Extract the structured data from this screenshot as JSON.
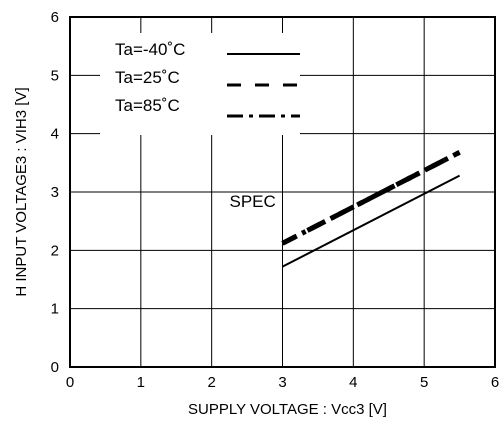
{
  "chart_data": {
    "type": "line",
    "xlabel": "SUPPLY VOLTAGE : Vcc3 [V]",
    "ylabel": "H INPUT VOLTAGE3 : VIH3 [V]",
    "xlim": [
      0,
      6
    ],
    "ylim": [
      0,
      6
    ],
    "x_ticks": [
      "0",
      "1",
      "2",
      "3",
      "4",
      "5",
      "6"
    ],
    "y_ticks": [
      "0",
      "1",
      "2",
      "3",
      "4",
      "5",
      "6"
    ],
    "grid": true,
    "legend_position": "top-left",
    "series": [
      {
        "name": "Ta=-40˚C",
        "style": "solid",
        "color": "#000000",
        "x": [
          3.0,
          5.5
        ],
        "y": [
          1.72,
          3.28
        ]
      },
      {
        "name": "Ta=25˚C",
        "style": "dash",
        "color": "#000000",
        "x": [
          3.0,
          5.5
        ],
        "y": [
          2.12,
          3.68
        ]
      },
      {
        "name": "Ta=85˚C",
        "style": "dashdot",
        "color": "#000000",
        "x": [
          3.0,
          5.5
        ],
        "y": [
          2.12,
          3.68
        ]
      }
    ],
    "annotations": [
      {
        "text": "SPEC",
        "x": 3.0,
        "y": 2.85
      }
    ]
  }
}
